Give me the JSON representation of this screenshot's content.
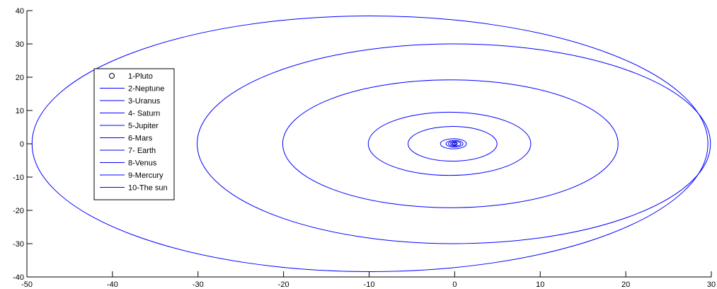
{
  "chart_data": {
    "type": "line",
    "title": "",
    "xlabel": "",
    "ylabel": "",
    "xlim": [
      -50,
      30
    ],
    "ylim": [
      -40,
      40
    ],
    "xticks": [
      -50,
      -40,
      -30,
      -20,
      -10,
      0,
      10,
      20,
      30
    ],
    "yticks": [
      -40,
      -30,
      -20,
      -10,
      0,
      10,
      20,
      30,
      40
    ],
    "xtick_labels": [
      "-50",
      "-40",
      "-30",
      "-20",
      "-10",
      "0",
      "10",
      "20",
      "30"
    ],
    "ytick_labels": [
      "-40",
      "-30",
      "-20",
      "-10",
      "0",
      "10",
      "20",
      "30",
      "40"
    ],
    "grid": false,
    "legend_position": "top-left",
    "line_color": "#0000ff",
    "series": [
      {
        "name": "1-Pluto",
        "marker": "circle",
        "x": [
          0
        ],
        "y": [
          0
        ],
        "bbox": {
          "xmin": -49.4,
          "xmax": 29.6,
          "ymin": -38.4,
          "ymax": 38.4
        }
      },
      {
        "name": "2-Neptune",
        "bbox": {
          "xmin": -30.1,
          "xmax": 29.9,
          "ymin": -30.0,
          "ymax": 30.0
        }
      },
      {
        "name": "3-Uranus",
        "bbox": {
          "xmin": -20.1,
          "xmax": 19.1,
          "ymin": -19.2,
          "ymax": 19.2
        }
      },
      {
        "name": "4- Saturn",
        "bbox": {
          "xmin": -10.1,
          "xmax": 8.9,
          "ymin": -9.5,
          "ymax": 9.5
        }
      },
      {
        "name": "5-Jupiter",
        "bbox": {
          "xmin": -5.45,
          "xmax": 4.95,
          "ymin": -5.2,
          "ymax": 5.2
        }
      },
      {
        "name": "6-Mars",
        "bbox": {
          "xmin": -1.67,
          "xmax": 1.38,
          "ymin": -1.52,
          "ymax": 1.52
        }
      },
      {
        "name": "7- Earth",
        "bbox": {
          "xmin": -1.02,
          "xmax": 0.98,
          "ymin": -1.0,
          "ymax": 1.0
        }
      },
      {
        "name": "8-Venus",
        "bbox": {
          "xmin": -0.73,
          "xmax": 0.72,
          "ymin": -0.72,
          "ymax": 0.72
        }
      },
      {
        "name": "9-Mercury",
        "bbox": {
          "xmin": -0.47,
          "xmax": 0.31,
          "ymin": -0.38,
          "ymax": 0.38
        }
      },
      {
        "name": "10-The sun",
        "bbox": {
          "xmin": -0.05,
          "xmax": 0.05,
          "ymin": -0.05,
          "ymax": 0.05
        }
      }
    ]
  }
}
